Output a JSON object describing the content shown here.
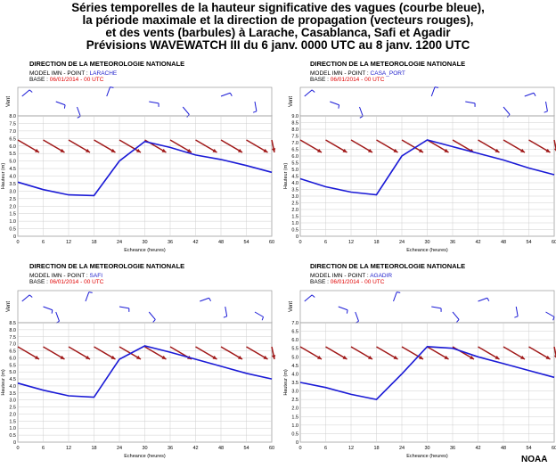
{
  "title_lines": [
    "Séries temporelles de la hauteur significative des vagues (courbe bleue),",
    "la période maximale et la direction de propagation (vecteurs rouges),",
    "et des vents (barbules) à Larache, Casablanca, Safi et Agadir",
    "Prévisions WAVEWATCH III du 6 janv. 0000 UTC au 8 janv. 1200 UTC"
  ],
  "credit": "NOAA",
  "colors": {
    "wave_height": "#1a1ad6",
    "propagation_vectors": "#a01818",
    "wind_barbs": "#1a1ad6",
    "base_text": "#e00000",
    "point_text": "#2222cc"
  },
  "chart_data": [
    {
      "type": "line",
      "header": "DIRECTION DE LA METEOROLOGIE NATIONALE",
      "model_line_prefix": "MODEL IMN - POINT : ",
      "point": "LARACHE",
      "base_prefix": "BASE : ",
      "base": "06/01/2014 - 00 UTC",
      "wind_label": "Vent",
      "xlabel": "Echeance (heures)",
      "ylabel": "Hauteur (m)",
      "xlim": [
        0,
        60
      ],
      "ylim": [
        0,
        8
      ],
      "xticks": [
        0,
        6,
        12,
        18,
        24,
        30,
        36,
        42,
        48,
        54,
        60
      ],
      "yticks": [
        0,
        0.5,
        1,
        1.5,
        2,
        2.5,
        3,
        3.5,
        4,
        4.5,
        5,
        5.5,
        6,
        6.5,
        7,
        7.5,
        8
      ],
      "ytick_labels": [
        "0",
        "0.5",
        "1.0",
        "1.5",
        "2.0",
        "2.5",
        "3.0",
        "3.5",
        "4.0",
        "4.5",
        "5.0",
        "5.5",
        "6.0",
        "6.5",
        "7.0",
        "7.5",
        "8.0"
      ],
      "series": [
        {
          "x": [
            0,
            6,
            12,
            18,
            24,
            30,
            36,
            42,
            48,
            54,
            60
          ],
          "y": [
            3.6,
            3.1,
            2.75,
            2.7,
            5.0,
            6.3,
            5.9,
            5.4,
            5.1,
            4.7,
            4.25
          ]
        }
      ],
      "vectors_x": [
        0,
        6,
        12,
        18,
        24,
        30,
        36,
        42,
        48,
        54,
        60
      ],
      "wind_barbs_x": [
        1,
        9,
        14,
        21,
        31,
        39,
        48,
        56
      ]
    },
    {
      "type": "line",
      "header": "DIRECTION DE LA METEOROLOGIE NATIONALE",
      "model_line_prefix": "MODEL IMN - POINT : ",
      "point": "CASA_PORT",
      "base_prefix": "BASE : ",
      "base": "06/01/2014 - 00 UTC",
      "wind_label": "Vent",
      "xlabel": "Echeance (heures)",
      "ylabel": "Hauteur (m)",
      "xlim": [
        0,
        60
      ],
      "ylim": [
        0,
        9
      ],
      "xticks": [
        0,
        6,
        12,
        18,
        24,
        30,
        36,
        42,
        48,
        54,
        60
      ],
      "yticks": [
        0,
        0.5,
        1,
        1.5,
        2,
        2.5,
        3,
        3.5,
        4,
        4.5,
        5,
        5.5,
        6,
        6.5,
        7,
        7.5,
        8,
        8.5,
        9
      ],
      "ytick_labels": [
        "0",
        "0.5",
        "1.0",
        "1.5",
        "2.0",
        "2.5",
        "3.0",
        "3.5",
        "4.0",
        "4.5",
        "5.0",
        "5.5",
        "6.0",
        "6.5",
        "7.0",
        "7.5",
        "8.0",
        "8.5",
        "9.0"
      ],
      "series": [
        {
          "x": [
            0,
            6,
            12,
            18,
            24,
            30,
            36,
            42,
            48,
            54,
            60
          ],
          "y": [
            4.3,
            3.7,
            3.3,
            3.1,
            6.0,
            7.2,
            6.7,
            6.2,
            5.7,
            5.1,
            4.6
          ]
        }
      ],
      "vectors_x": [
        0,
        6,
        12,
        18,
        24,
        30,
        36,
        42,
        48,
        54,
        60
      ],
      "wind_barbs_x": [
        1,
        7,
        14,
        31,
        39,
        48,
        53,
        58
      ]
    },
    {
      "type": "line",
      "header": "DIRECTION DE LA METEOROLOGIE NATIONALE",
      "model_line_prefix": "MODEL IMN - POINT : ",
      "point": "SAFI",
      "base_prefix": "BASE : ",
      "base": "06/01/2014 - 00 UTC",
      "wind_label": "Vent",
      "xlabel": "Echeance (heures)",
      "ylabel": "Hauteur (m)",
      "xlim": [
        0,
        60
      ],
      "ylim": [
        0,
        8.5
      ],
      "xticks": [
        0,
        6,
        12,
        18,
        24,
        30,
        36,
        42,
        48,
        54,
        60
      ],
      "yticks": [
        0,
        0.5,
        1,
        1.5,
        2,
        2.5,
        3,
        3.5,
        4,
        4.5,
        5,
        5.5,
        6,
        6.5,
        7,
        7.5,
        8,
        8.5
      ],
      "ytick_labels": [
        "0",
        "0.5",
        "1.0",
        "1.5",
        "2.0",
        "2.5",
        "3.0",
        "3.5",
        "4.0",
        "4.5",
        "5.0",
        "5.5",
        "6.0",
        "6.5",
        "7.0",
        "7.5",
        "8.0",
        "8.5"
      ],
      "series": [
        {
          "x": [
            0,
            6,
            12,
            18,
            24,
            30,
            36,
            42,
            48,
            54,
            60
          ],
          "y": [
            4.2,
            3.7,
            3.3,
            3.2,
            5.9,
            6.85,
            6.4,
            5.9,
            5.4,
            4.9,
            4.5
          ]
        }
      ],
      "vectors_x": [
        0,
        6,
        12,
        18,
        24,
        30,
        36,
        42,
        48,
        54,
        60
      ],
      "wind_barbs_x": [
        1,
        6,
        9,
        16,
        24,
        31,
        43,
        49,
        56
      ]
    },
    {
      "type": "line",
      "header": "DIRECTION DE LA METEOROLOGIE NATIONALE",
      "model_line_prefix": "MODEL IMN - POINT : ",
      "point": "AGADIR",
      "base_prefix": "BASE : ",
      "base": "06/01/2014 - 00 UTC",
      "wind_label": "Vent",
      "xlabel": "Echeance (heures)",
      "ylabel": "Hauteur (m)",
      "xlim": [
        0,
        60
      ],
      "ylim": [
        0,
        7
      ],
      "xticks": [
        0,
        6,
        12,
        18,
        24,
        30,
        36,
        42,
        48,
        54,
        60
      ],
      "yticks": [
        0,
        0.5,
        1,
        1.5,
        2,
        2.5,
        3,
        3.5,
        4,
        4.5,
        5,
        5.5,
        6,
        6.5,
        7
      ],
      "ytick_labels": [
        "0",
        "0.5",
        "1.0",
        "1.5",
        "2.0",
        "2.5",
        "3.0",
        "3.5",
        "4.0",
        "4.5",
        "5.0",
        "5.5",
        "6.0",
        "6.5",
        "7.0"
      ],
      "series": [
        {
          "x": [
            0,
            6,
            12,
            18,
            24,
            30,
            36,
            42,
            48,
            54,
            60
          ],
          "y": [
            3.5,
            3.2,
            2.8,
            2.5,
            4.0,
            5.6,
            5.5,
            5.0,
            4.6,
            4.2,
            3.8
          ]
        }
      ],
      "vectors_x": [
        0,
        6,
        12,
        18,
        24,
        30,
        36,
        42,
        48,
        54,
        60
      ],
      "wind_barbs_x": [
        1,
        9,
        13,
        22,
        31,
        36,
        42,
        51,
        58
      ]
    }
  ]
}
